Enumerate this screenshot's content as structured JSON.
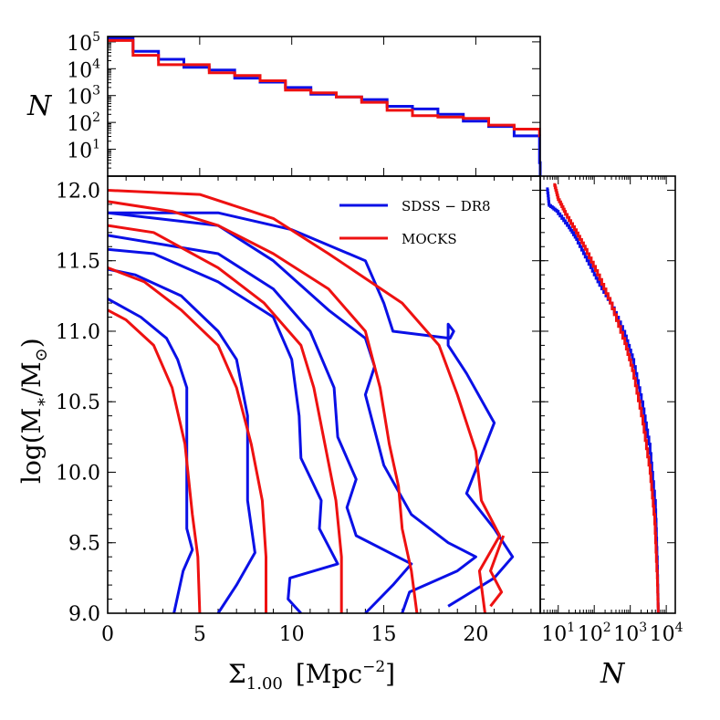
{
  "chart_data": [
    {
      "panel": "main",
      "type": "line",
      "xlabel_symbol": "Σ",
      "xlabel_sub": "1.00",
      "xlabel_unit": "[Mpc",
      "xlabel_exp": "−2",
      "xlabel_close": "]",
      "ylabel_pre": "log(M",
      "ylabel_sub1": "∗",
      "ylabel_mid": "/M",
      "ylabel_sub2": "⊙",
      "ylabel_post": ")",
      "xlim": [
        0,
        23.5
      ],
      "ylim": [
        9.0,
        12.1
      ],
      "xticks": [
        "0",
        "5",
        "10",
        "15",
        "20"
      ],
      "yticks": [
        "9.0",
        "9.5",
        "10.0",
        "10.5",
        "11.0",
        "11.5",
        "12.0"
      ],
      "legend": [
        {
          "label": "SDSS − DR8",
          "color": "#0a10e6"
        },
        {
          "label": "MOCKS",
          "color": "#ee1111"
        }
      ],
      "series": [
        {
          "name": "SDSS − DR8 contour 1",
          "color": "#0a10e6",
          "points": [
            [
              3.6,
              9.0
            ],
            [
              4.1,
              9.3
            ],
            [
              4.6,
              9.45
            ],
            [
              4.3,
              9.6
            ],
            [
              4.3,
              10.2
            ],
            [
              4.3,
              10.6
            ],
            [
              3.8,
              10.8
            ],
            [
              3.2,
              10.95
            ],
            [
              1.8,
              11.1
            ],
            [
              0,
              11.23
            ]
          ]
        },
        {
          "name": "SDSS − DR8 contour 2",
          "color": "#0a10e6",
          "points": [
            [
              6.0,
              9.0
            ],
            [
              7.0,
              9.2
            ],
            [
              8.0,
              9.43
            ],
            [
              7.6,
              9.8
            ],
            [
              7.6,
              10.4
            ],
            [
              7.0,
              10.8
            ],
            [
              6.0,
              11.0
            ],
            [
              4.0,
              11.25
            ],
            [
              1.5,
              11.4
            ],
            [
              0,
              11.44
            ]
          ]
        },
        {
          "name": "SDSS − DR8 contour 3",
          "color": "#0a10e6",
          "points": [
            [
              10.5,
              9.0
            ],
            [
              9.8,
              9.1
            ],
            [
              9.9,
              9.25
            ],
            [
              12.5,
              9.35
            ],
            [
              11.5,
              9.6
            ],
            [
              11.6,
              9.8
            ],
            [
              10.5,
              10.1
            ],
            [
              10.4,
              10.4
            ],
            [
              10.0,
              10.8
            ],
            [
              9.0,
              11.1
            ],
            [
              6.0,
              11.35
            ],
            [
              2.5,
              11.55
            ],
            [
              0,
              11.58
            ]
          ]
        },
        {
          "name": "SDSS − DR8 contour 4",
          "color": "#0a10e6",
          "points": [
            [
              14.0,
              9.0
            ],
            [
              15.5,
              9.2
            ],
            [
              16.5,
              9.35
            ],
            [
              13.5,
              9.55
            ],
            [
              13.0,
              9.75
            ],
            [
              13.5,
              9.95
            ],
            [
              12.5,
              10.25
            ],
            [
              12.3,
              10.6
            ],
            [
              11.0,
              11.0
            ],
            [
              9.0,
              11.3
            ],
            [
              6.0,
              11.55
            ],
            [
              0,
              11.68
            ]
          ]
        },
        {
          "name": "SDSS − DR8 contour 5",
          "color": "#0a10e6",
          "points": [
            [
              16.0,
              9.0
            ],
            [
              16.4,
              9.15
            ],
            [
              19.0,
              9.3
            ],
            [
              20.0,
              9.4
            ],
            [
              18.5,
              9.5
            ],
            [
              16.5,
              9.7
            ],
            [
              15.0,
              10.05
            ],
            [
              14.5,
              10.3
            ],
            [
              14.0,
              10.55
            ],
            [
              14.5,
              10.75
            ],
            [
              14.0,
              10.95
            ],
            [
              12.0,
              11.15
            ],
            [
              9.0,
              11.5
            ],
            [
              6.0,
              11.75
            ],
            [
              0,
              11.84
            ]
          ]
        },
        {
          "name": "SDSS − DR8 contour 6",
          "color": "#0a10e6",
          "points": [
            [
              18.5,
              9.05
            ],
            [
              21.0,
              9.25
            ],
            [
              22.0,
              9.4
            ],
            [
              21.0,
              9.6
            ],
            [
              19.5,
              9.85
            ],
            [
              21.0,
              10.35
            ],
            [
              19.5,
              10.7
            ],
            [
              18.5,
              10.9
            ],
            [
              18.5,
              11.05
            ],
            [
              18.8,
              11.0
            ],
            [
              18.6,
              10.95
            ],
            [
              15.5,
              11.0
            ],
            [
              15.0,
              11.2
            ],
            [
              14.0,
              11.5
            ],
            [
              10.0,
              11.72
            ],
            [
              6.0,
              11.84
            ],
            [
              0,
              11.84
            ]
          ]
        },
        {
          "name": "MOCKS contour 1",
          "color": "#ee1111",
          "points": [
            [
              5.0,
              9.0
            ],
            [
              4.9,
              9.4
            ],
            [
              4.6,
              9.7
            ],
            [
              4.2,
              10.2
            ],
            [
              3.5,
              10.6
            ],
            [
              2.5,
              10.9
            ],
            [
              1.0,
              11.08
            ],
            [
              0,
              11.15
            ]
          ]
        },
        {
          "name": "MOCKS contour 2",
          "color": "#ee1111",
          "points": [
            [
              8.6,
              9.0
            ],
            [
              8.6,
              9.4
            ],
            [
              8.4,
              9.8
            ],
            [
              7.8,
              10.2
            ],
            [
              7.0,
              10.6
            ],
            [
              6.0,
              10.9
            ],
            [
              4.0,
              11.15
            ],
            [
              2.0,
              11.35
            ],
            [
              0,
              11.45
            ]
          ]
        },
        {
          "name": "MOCKS contour 3",
          "color": "#ee1111",
          "points": [
            [
              12.7,
              9.0
            ],
            [
              12.7,
              9.4
            ],
            [
              12.4,
              9.8
            ],
            [
              11.8,
              10.2
            ],
            [
              11.2,
              10.6
            ],
            [
              10.5,
              10.9
            ],
            [
              8.5,
              11.2
            ],
            [
              6.0,
              11.45
            ],
            [
              2.5,
              11.7
            ],
            [
              0,
              11.75
            ]
          ]
        },
        {
          "name": "MOCKS contour 4",
          "color": "#ee1111",
          "points": [
            [
              16.8,
              9.0
            ],
            [
              16.5,
              9.3
            ],
            [
              16.0,
              9.6
            ],
            [
              15.8,
              9.9
            ],
            [
              15.3,
              10.2
            ],
            [
              14.8,
              10.6
            ],
            [
              14.0,
              11.0
            ],
            [
              12.0,
              11.3
            ],
            [
              9.0,
              11.55
            ],
            [
              6.0,
              11.75
            ],
            [
              3.5,
              11.85
            ],
            [
              0,
              11.92
            ]
          ]
        },
        {
          "name": "MOCKS contour 5",
          "color": "#ee1111",
          "points": [
            [
              20.5,
              9.0
            ],
            [
              20.2,
              9.3
            ],
            [
              21.3,
              9.55
            ],
            [
              20.3,
              9.8
            ],
            [
              20.0,
              10.15
            ],
            [
              19.0,
              10.55
            ],
            [
              18.0,
              10.9
            ],
            [
              16.0,
              11.2
            ],
            [
              12.0,
              11.55
            ],
            [
              9.0,
              11.8
            ],
            [
              5.0,
              11.97
            ],
            [
              0,
              12.0
            ]
          ]
        },
        {
          "name": "MOCKS contour 6",
          "color": "#ee1111",
          "points": [
            [
              20.8,
              9.05
            ],
            [
              21.4,
              9.15
            ],
            [
              20.8,
              9.3
            ],
            [
              21.5,
              9.55
            ]
          ]
        }
      ]
    },
    {
      "panel": "top-histogram",
      "type": "step",
      "ylabel": "N",
      "yscale": "log",
      "ylim_exp": [
        0,
        5.2
      ],
      "ytick_base": "10",
      "ytick_exps": [
        "1",
        "2",
        "3",
        "4",
        "5"
      ],
      "bin_width": 1.38,
      "series": [
        {
          "name": "SDSS − DR8",
          "color": "#0a10e6",
          "log_counts": [
            5.15,
            4.65,
            4.35,
            4.05,
            3.95,
            3.65,
            3.5,
            3.3,
            3.05,
            2.95,
            2.85,
            2.6,
            2.5,
            2.3,
            2.05,
            1.85,
            1.5,
            0.5
          ]
        },
        {
          "name": "MOCKS",
          "color": "#ee1111",
          "log_counts": [
            5.05,
            4.5,
            4.15,
            4.15,
            3.85,
            3.75,
            3.55,
            3.2,
            3.1,
            2.95,
            2.75,
            2.45,
            2.25,
            2.2,
            2.15,
            1.9,
            1.75,
            1.5
          ]
        }
      ]
    },
    {
      "panel": "right-histogram",
      "type": "step",
      "xlabel": "N",
      "xscale": "log",
      "xlim_exp": [
        0.5,
        4.25
      ],
      "xtick_base": "10",
      "xtick_exps": [
        "1",
        "2",
        "3",
        "4"
      ],
      "series": [
        {
          "name": "SDSS − DR8",
          "color": "#0a10e6",
          "curve": [
            [
              0.7,
              12.02
            ],
            [
              0.75,
              11.9
            ],
            [
              1.0,
              11.85
            ],
            [
              1.3,
              11.75
            ],
            [
              1.55,
              11.65
            ],
            [
              1.85,
              11.5
            ],
            [
              2.15,
              11.35
            ],
            [
              2.5,
              11.2
            ],
            [
              2.85,
              11.0
            ],
            [
              3.1,
              10.8
            ],
            [
              3.35,
              10.5
            ],
            [
              3.55,
              10.2
            ],
            [
              3.7,
              9.8
            ],
            [
              3.75,
              9.4
            ],
            [
              3.78,
              9.0
            ]
          ]
        },
        {
          "name": "MOCKS",
          "color": "#ee1111",
          "curve": [
            [
              0.9,
              12.05
            ],
            [
              1.0,
              11.95
            ],
            [
              1.2,
              11.85
            ],
            [
              1.5,
              11.72
            ],
            [
              1.8,
              11.58
            ],
            [
              2.15,
              11.4
            ],
            [
              2.5,
              11.2
            ],
            [
              2.85,
              10.95
            ],
            [
              3.1,
              10.72
            ],
            [
              3.35,
              10.4
            ],
            [
              3.55,
              10.05
            ],
            [
              3.68,
              9.7
            ],
            [
              3.75,
              9.3
            ],
            [
              3.78,
              9.0
            ]
          ]
        }
      ]
    }
  ]
}
